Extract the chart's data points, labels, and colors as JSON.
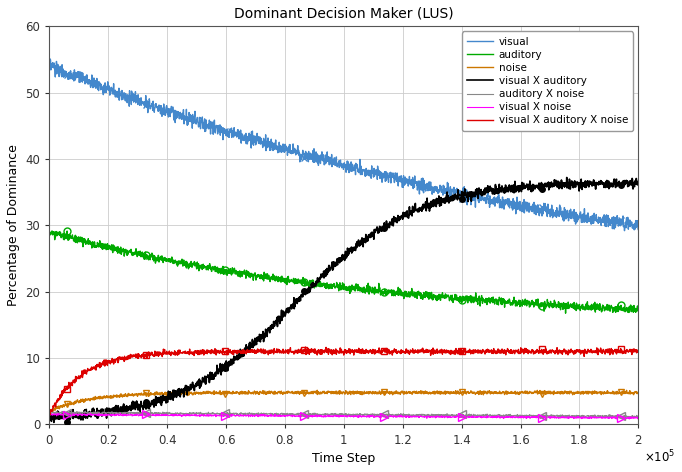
{
  "title": "Dominant Decision Maker (LUS)",
  "xlabel": "Time Step",
  "ylabel": "Percentage of Dominance",
  "xlim": [
    0,
    200000
  ],
  "ylim": [
    0,
    60
  ],
  "yticks": [
    0,
    10,
    20,
    30,
    40,
    50,
    60
  ],
  "xtick_vals": [
    0,
    20000,
    40000,
    60000,
    80000,
    100000,
    120000,
    140000,
    160000,
    180000,
    200000
  ],
  "xtick_labels": [
    "0",
    "0.2",
    "0.4",
    "0.6",
    "0.8",
    "1",
    "1.2",
    "1.4",
    "1.6",
    "1.8",
    "2"
  ],
  "series": [
    {
      "name": "visual",
      "color": "#4488CC",
      "marker": "x",
      "markersize": 5,
      "linewidth": 1.0,
      "filled": false,
      "curve": "visual"
    },
    {
      "name": "auditory",
      "color": "#00AA00",
      "marker": "o",
      "markersize": 5,
      "linewidth": 1.0,
      "filled": false,
      "curve": "auditory"
    },
    {
      "name": "noise",
      "color": "#CC7700",
      "marker": "v",
      "markersize": 5,
      "linewidth": 1.0,
      "filled": false,
      "curve": "noise"
    },
    {
      "name": "visual X auditory",
      "color": "#000000",
      "marker": "o",
      "markersize": 4,
      "linewidth": 1.2,
      "filled": true,
      "curve": "visual_x_auditory"
    },
    {
      "name": "auditory X noise",
      "color": "#888888",
      "marker": "<",
      "markersize": 6,
      "linewidth": 0.8,
      "filled": false,
      "curve": "auditory_x_noise"
    },
    {
      "name": "visual X noise",
      "color": "#FF00FF",
      "marker": ">",
      "markersize": 6,
      "linewidth": 0.8,
      "filled": false,
      "curve": "visual_x_noise"
    },
    {
      "name": "visual X auditory X noise",
      "color": "#DD0000",
      "marker": "s",
      "markersize": 5,
      "linewidth": 1.0,
      "filled": false,
      "curve": "visual_x_auditory_x_noise"
    }
  ],
  "background_color": "#FFFFFF",
  "grid_color": "#CCCCCC",
  "legend_fontsize": 7.5,
  "title_fontsize": 10,
  "label_fontsize": 9,
  "tick_fontsize": 8.5,
  "figwidth": 6.82,
  "figheight": 4.72,
  "dpi": 100
}
